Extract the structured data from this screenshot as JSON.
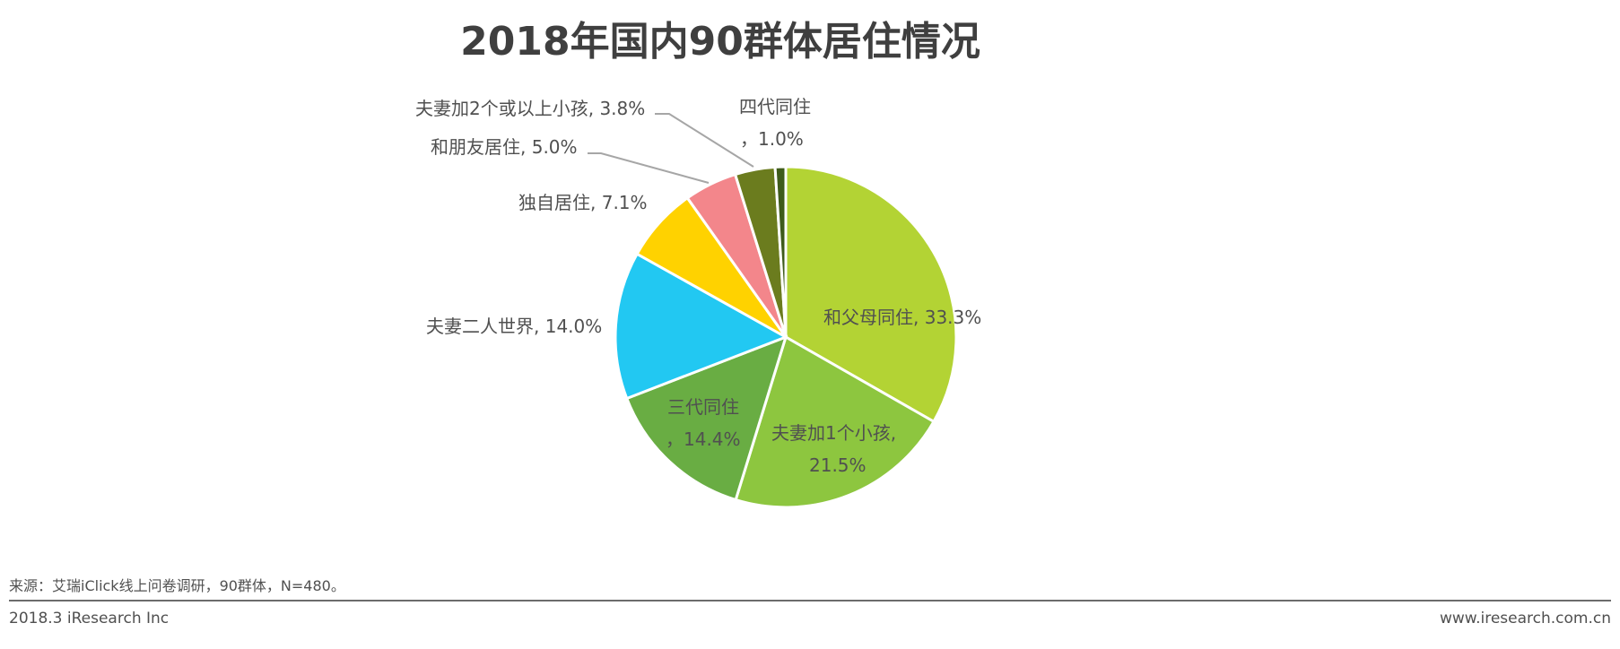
{
  "chart_data": {
    "type": "pie",
    "title": "2018年国内90群体居住情况",
    "slices": [
      {
        "label": "和父母同住",
        "value": 33.3,
        "color": "#b3d334"
      },
      {
        "label": "夫妻加1个小孩",
        "value": 21.5,
        "color": "#8dc63f"
      },
      {
        "label": "三代同住",
        "value": 14.4,
        "color": "#69ad43"
      },
      {
        "label": "夫妻二人世界",
        "value": 14.0,
        "color": "#22c8f2"
      },
      {
        "label": "独自居住",
        "value": 7.1,
        "color": "#ffd200"
      },
      {
        "label": "和朋友居住",
        "value": 5.0,
        "color": "#f3868b"
      },
      {
        "label": "夫妻加2个或以上小孩",
        "value": 3.8,
        "color": "#6b7c1e"
      },
      {
        "label": "四代同住",
        "value": 1.0,
        "color": "#3e5b1a"
      }
    ]
  },
  "labels": {
    "l0": "和父母同住, 33.3%",
    "l1a": "夫妻加1个小孩,",
    "l1b": "21.5%",
    "l2a": "三代同住",
    "l2b": "，14.4%",
    "l3": "夫妻二人世界, 14.0%",
    "l4": "独自居住, 7.1%",
    "l5": "和朋友居住, 5.0%",
    "l6": "夫妻加2个或以上小孩, 3.8%",
    "l7a": "四代同住",
    "l7b": "，1.0%"
  },
  "footer": {
    "source": "来源：艾瑞iClick线上问卷调研，90群体，N=480。",
    "left": "2018.3 iResearch Inc",
    "right": "www.iresearch.com.cn"
  }
}
